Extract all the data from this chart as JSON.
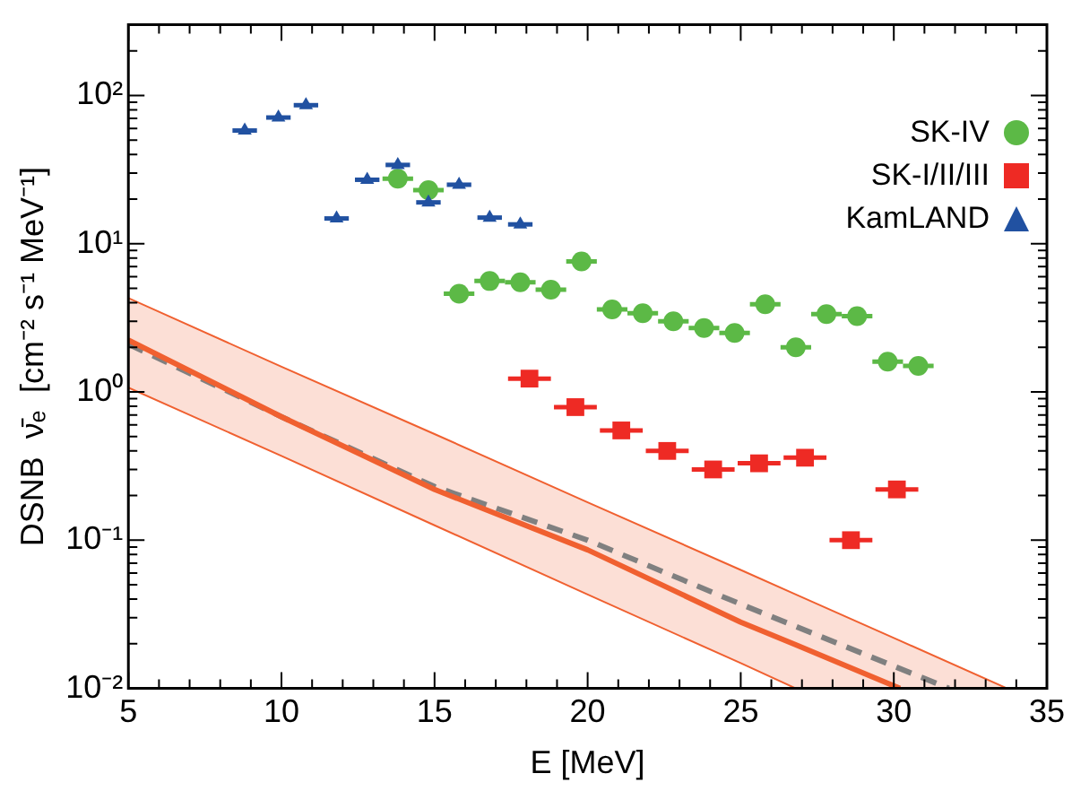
{
  "chart_data": {
    "type": "scatter",
    "xlabel": "E [MeV]",
    "ylabel": "DSNB  ν̄ₑ  [cm⁻² s⁻¹ MeV⁻¹]",
    "xlim": [
      5,
      35
    ],
    "xticks": [
      5,
      {
        "value": 6,
        "label": null
      },
      {
        "value": 7,
        "label": null
      },
      {
        "value": 8,
        "label": null
      },
      {
        "value": 9,
        "label": null
      },
      10,
      {
        "value": 11,
        "label": null
      },
      {
        "value": 12,
        "label": null
      },
      {
        "value": 13,
        "label": null
      },
      {
        "value": 14,
        "label": null
      },
      15,
      {
        "value": 16,
        "label": null
      },
      {
        "value": 17,
        "label": null
      },
      {
        "value": 18,
        "label": null
      },
      {
        "value": 19,
        "label": null
      },
      20,
      {
        "value": 21,
        "label": null
      },
      {
        "value": 22,
        "label": null
      },
      {
        "value": 23,
        "label": null
      },
      {
        "value": 24,
        "label": null
      },
      25,
      {
        "value": 26,
        "label": null
      },
      {
        "value": 27,
        "label": null
      },
      {
        "value": 28,
        "label": null
      },
      {
        "value": 29,
        "label": null
      },
      30,
      {
        "value": 31,
        "label": null
      },
      {
        "value": 32,
        "label": null
      },
      {
        "value": 33,
        "label": null
      },
      {
        "value": 34,
        "label": null
      },
      35
    ],
    "ylim": [
      0.01,
      300
    ],
    "log": "y",
    "yticks": [
      {
        "value": 0.01,
        "label": "10⁻²"
      },
      {
        "value": 0.02,
        "label": null
      },
      {
        "value": 0.03,
        "label": null
      },
      {
        "value": 0.04,
        "label": null
      },
      {
        "value": 0.05,
        "label": null
      },
      {
        "value": 0.06,
        "label": null
      },
      {
        "value": 0.07,
        "label": null
      },
      {
        "value": 0.08,
        "label": null
      },
      {
        "value": 0.09,
        "label": null
      },
      {
        "value": 0.1,
        "label": "10⁻¹"
      },
      {
        "value": 0.2,
        "label": null
      },
      {
        "value": 0.3,
        "label": null
      },
      {
        "value": 0.4,
        "label": null
      },
      {
        "value": 0.5,
        "label": null
      },
      {
        "value": 0.6,
        "label": null
      },
      {
        "value": 0.7,
        "label": null
      },
      {
        "value": 0.8,
        "label": null
      },
      {
        "value": 0.9,
        "label": null
      },
      {
        "value": 1,
        "label": "10⁰"
      },
      {
        "value": 2,
        "label": null
      },
      {
        "value": 3,
        "label": null
      },
      {
        "value": 4,
        "label": null
      },
      {
        "value": 5,
        "label": null
      },
      {
        "value": 6,
        "label": null
      },
      {
        "value": 7,
        "label": null
      },
      {
        "value": 8,
        "label": null
      },
      {
        "value": 9,
        "label": null
      },
      {
        "value": 10,
        "label": "10¹"
      },
      {
        "value": 20,
        "label": null
      },
      {
        "value": 30,
        "label": null
      },
      {
        "value": 40,
        "label": null
      },
      {
        "value": 50,
        "label": null
      },
      {
        "value": 60,
        "label": null
      },
      {
        "value": 70,
        "label": null
      },
      {
        "value": 80,
        "label": null
      },
      {
        "value": 90,
        "label": null
      },
      {
        "value": 100,
        "label": "10²"
      },
      {
        "value": 200,
        "label": null
      },
      {
        "value": 300,
        "label": null
      }
    ],
    "grid": false,
    "legend": "top right",
    "series": [
      {
        "type": "line",
        "color": "#f06030",
        "line_style": "solid",
        "marker": "none",
        "x": [
          5,
          10,
          15,
          20,
          25,
          26.8,
          30.2
        ],
        "values": [
          2.24,
          0.68,
          0.22,
          0.086,
          0.028,
          0.0197,
          0.01
        ]
      },
      {
        "type": "area",
        "color": "#f06030",
        "marker": "none",
        "x": [
          5,
          10,
          15,
          20,
          25,
          26.8,
          30.2,
          33.7
        ],
        "values": [
          4.3,
          1.48,
          0.52,
          0.18,
          0.063,
          0.043,
          0.021,
          0.01
        ]
      },
      {
        "type": "line",
        "color": "#f06030",
        "line_style": "solid",
        "marker": "none",
        "x": [
          5,
          10,
          15,
          20,
          25,
          26.8
        ],
        "values": [
          1.07,
          0.37,
          0.126,
          0.043,
          0.0148,
          0.01
        ]
      },
      {
        "type": "line",
        "color": "#808080",
        "line_style": "dashed",
        "marker": "none",
        "x": [
          5,
          10,
          15,
          20,
          25,
          31.8
        ],
        "values": [
          2.1,
          0.68,
          0.23,
          0.1,
          0.037,
          0.01
        ]
      },
      {
        "name": "SK-IV",
        "type": "scatter",
        "color": "#5cb946",
        "marker": "circle",
        "x": [
          13.8,
          14.8,
          15.8,
          16.8,
          17.8,
          18.8,
          19.8,
          20.8,
          21.8,
          22.8,
          23.8,
          24.8,
          25.8,
          26.8,
          27.8,
          28.8,
          29.8,
          30.8
        ],
        "values": [
          27.5,
          23,
          4.6,
          5.6,
          5.5,
          4.9,
          7.6,
          3.6,
          3.4,
          3.0,
          2.7,
          2.5,
          3.9,
          2.0,
          3.35,
          3.25,
          1.6,
          1.5
        ],
        "xerrors": [
          0.5,
          0.5,
          0.5,
          0.5,
          0.5,
          0.5,
          0.5,
          0.5,
          0.5,
          0.5,
          0.5,
          0.5,
          0.5,
          0.5,
          0.5,
          0.5,
          0.5,
          0.5
        ]
      },
      {
        "name": "SK-I/II/III",
        "type": "scatter",
        "color": "#ee2a24",
        "marker": "square",
        "x": [
          18.1,
          19.6,
          21.1,
          22.6,
          24.1,
          25.6,
          27.1,
          28.6,
          30.1
        ],
        "values": [
          1.23,
          0.79,
          0.55,
          0.4,
          0.3,
          0.33,
          0.36,
          0.1,
          0.22
        ],
        "xerrors": [
          0.7,
          0.7,
          0.7,
          0.7,
          0.7,
          0.7,
          0.7,
          0.7,
          0.7
        ]
      },
      {
        "name": "KamLAND",
        "type": "scatter",
        "color": "#2151a1",
        "marker": "triangle",
        "x": [
          8.8,
          9.9,
          10.8,
          11.8,
          12.8,
          13.8,
          14.8,
          15.8,
          16.8,
          17.8
        ],
        "values": [
          58,
          71,
          86,
          14.8,
          27,
          34,
          19,
          25,
          15,
          13.5
        ],
        "xerrors": [
          0.4,
          0.4,
          0.4,
          0.4,
          0.4,
          0.4,
          0.4,
          0.4,
          0.4,
          0.4
        ]
      }
    ]
  }
}
